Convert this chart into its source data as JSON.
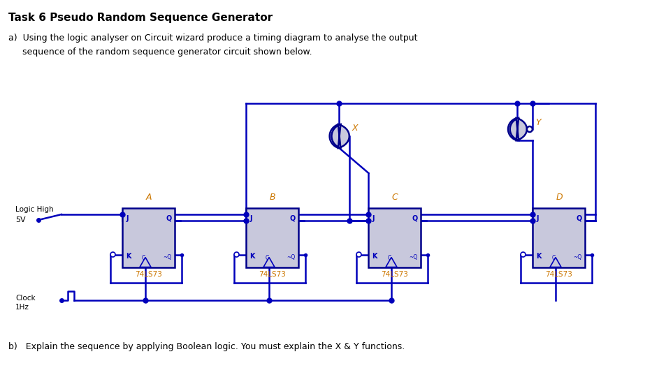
{
  "title": "Task 6 Pseudo Random Sequence Generator",
  "part_a_line1": "a)  Using the logic analyser on Circuit wizard produce a timing diagram to analyse the output",
  "part_a_line2": "     sequence of the random sequence generator circuit shown below.",
  "part_b": "b)   Explain the sequence by applying Boolean logic. You must explain the X & Y functions.",
  "wire_color": "#0000BB",
  "label_orange": "#CC7700",
  "ff_fill": "#C8C8DC",
  "ff_border": "#00008B",
  "bg_color": "#FFFFFF",
  "text_color": "#000000"
}
